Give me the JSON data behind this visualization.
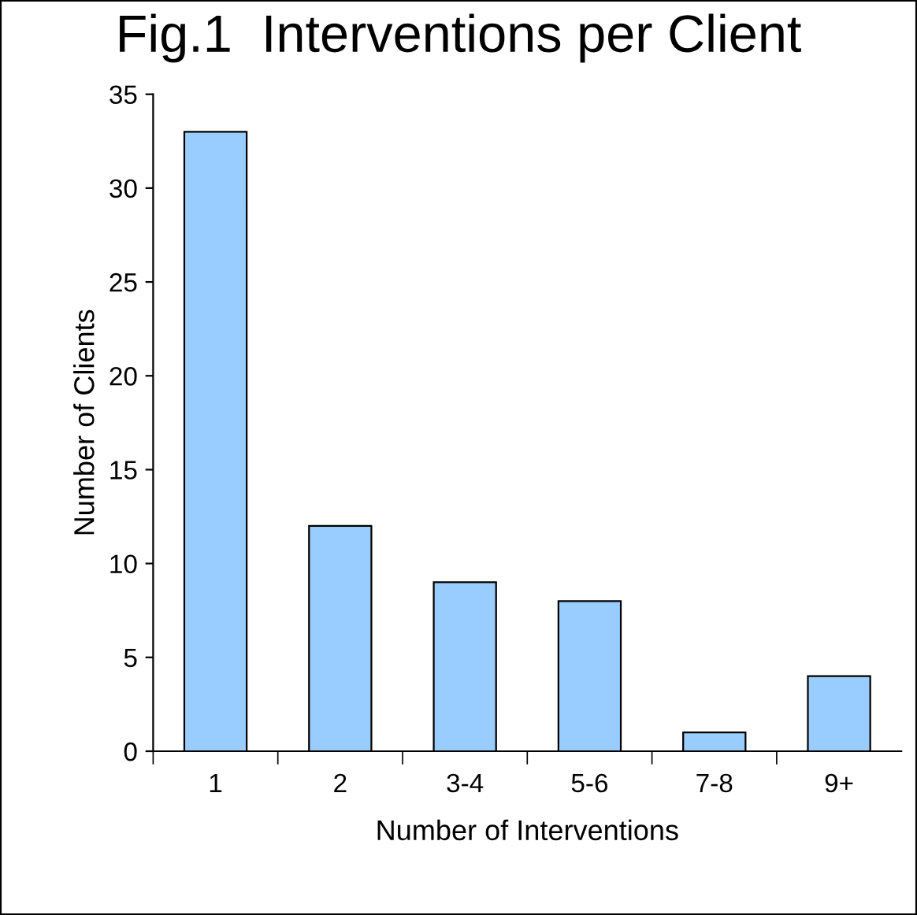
{
  "chart_data": {
    "type": "bar",
    "title": "Fig.1  Interventions per Client",
    "xlabel": "Number of Interventions",
    "ylabel": "Number of Clients",
    "categories": [
      "1",
      "2",
      "3-4",
      "5-6",
      "7-8",
      "9+"
    ],
    "values": [
      33,
      12,
      9,
      8,
      1,
      4
    ],
    "color": "#99ccff",
    "ylim": [
      0,
      35
    ],
    "yticks": [
      0,
      5,
      10,
      15,
      20,
      25,
      30,
      35
    ],
    "grid": false,
    "legend": false
  }
}
